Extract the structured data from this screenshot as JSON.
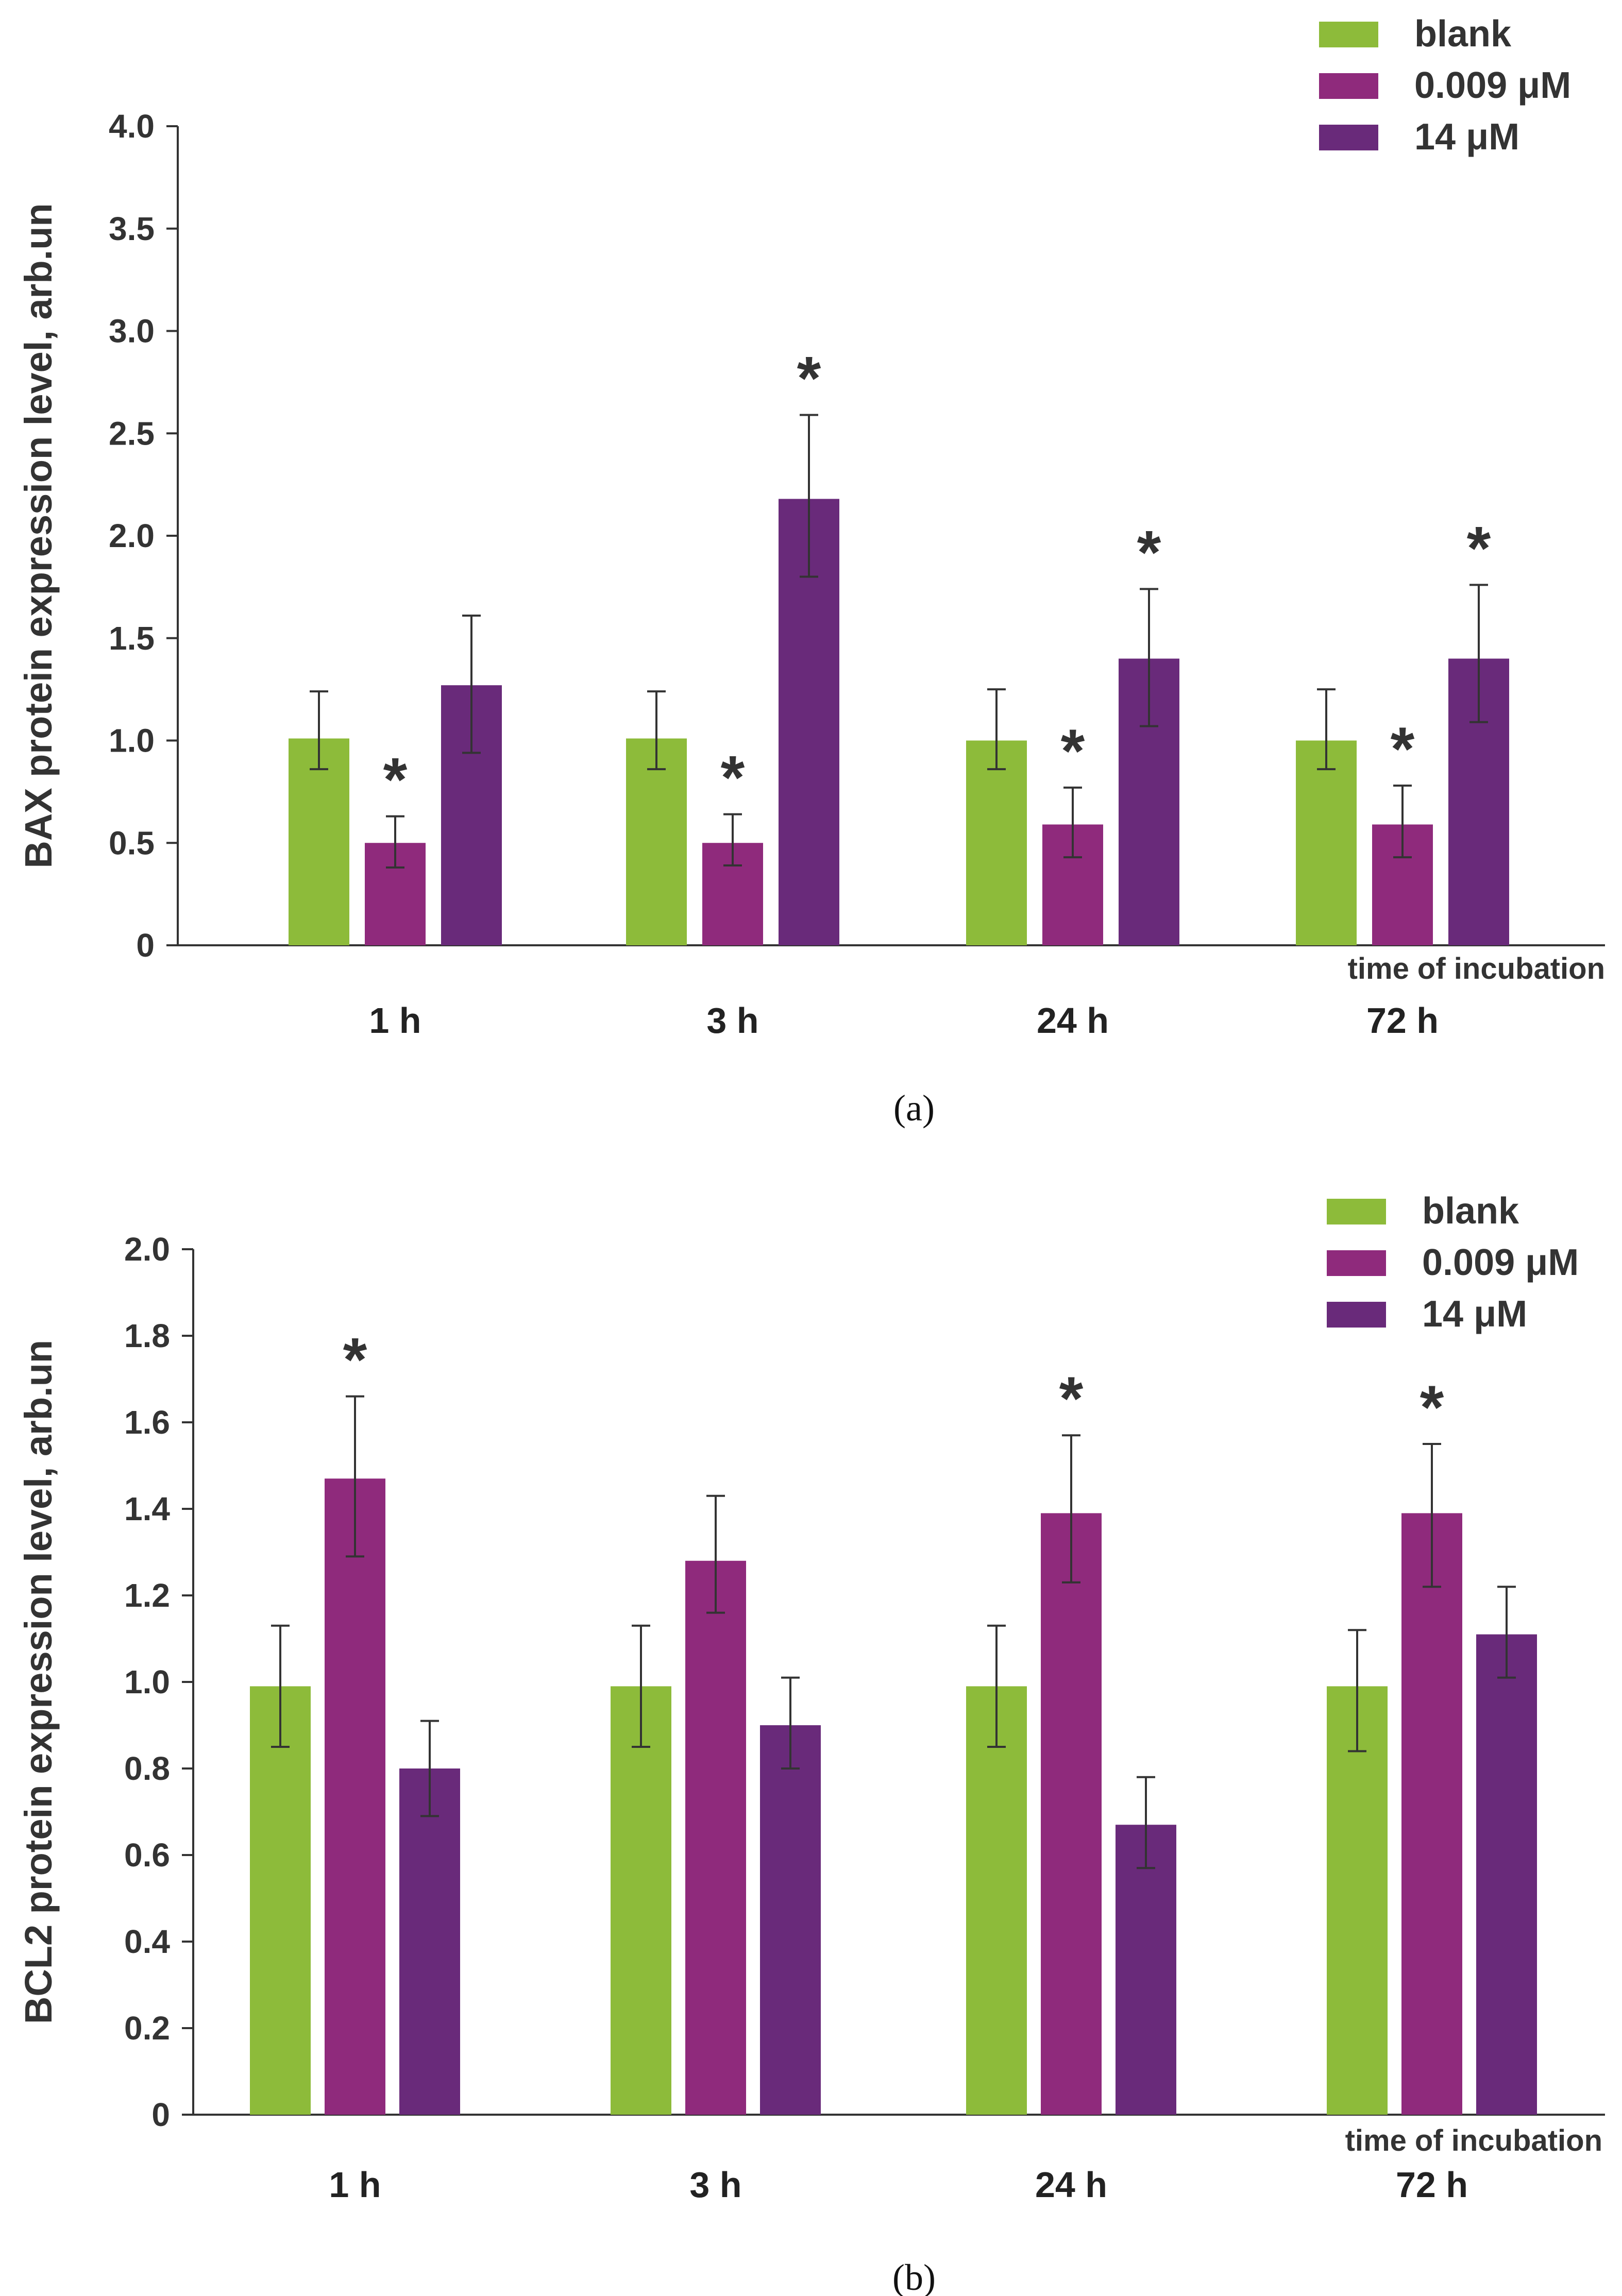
{
  "chart_data": [
    {
      "type": "bar",
      "panel": "(a)",
      "ylabel": "BAX protein expression level, arb.un",
      "xlabel": "time  of incubation",
      "categories": [
        "1 h",
        "3 h",
        "24 h",
        "72 h"
      ],
      "ylim": [
        0,
        4.0
      ],
      "yticks": [
        0,
        0.5,
        1.0,
        1.5,
        2.0,
        2.5,
        3.0,
        3.5,
        4.0
      ],
      "ytick_labels": [
        "0",
        "0.5",
        "1.0",
        "1.5",
        "2.0",
        "2.5",
        "3.0",
        "3.5",
        "4.0"
      ],
      "series": [
        {
          "name": "blank",
          "color": "#8dbb3a",
          "values": [
            1.01,
            1.01,
            1.0,
            1.0
          ],
          "err_low": [
            0.86,
            0.86,
            0.86,
            0.86
          ],
          "err_high": [
            1.24,
            1.24,
            1.25,
            1.25
          ],
          "significant": [
            false,
            false,
            false,
            false
          ]
        },
        {
          "name": "0.009 μM",
          "color": "#8f2a7c",
          "values": [
            0.5,
            0.5,
            0.59,
            0.59
          ],
          "err_low": [
            0.38,
            0.39,
            0.43,
            0.43
          ],
          "err_high": [
            0.63,
            0.64,
            0.77,
            0.78
          ],
          "significant": [
            true,
            true,
            true,
            true
          ]
        },
        {
          "name": "14 μM",
          "color": "#692a7a",
          "values": [
            1.27,
            2.18,
            1.4,
            1.4
          ],
          "err_low": [
            0.94,
            1.8,
            1.07,
            1.09
          ],
          "err_high": [
            1.61,
            2.59,
            1.74,
            1.76
          ],
          "significant": [
            false,
            true,
            true,
            true
          ]
        }
      ],
      "significance_marker": "*"
    },
    {
      "type": "bar",
      "panel": "(b)",
      "ylabel": "BCL2 protein expression level, arb.un",
      "xlabel": "time  of incubation",
      "categories": [
        "1 h",
        "3 h",
        "24 h",
        "72 h"
      ],
      "ylim": [
        0,
        2.0
      ],
      "yticks": [
        0,
        0.2,
        0.4,
        0.6,
        0.8,
        1.0,
        1.2,
        1.4,
        1.6,
        1.8,
        2.0
      ],
      "ytick_labels": [
        "0",
        "0.2",
        "0.4",
        "0.6",
        "0.8",
        "1.0",
        "1.2",
        "1.4",
        "1.6",
        "1.8",
        "2.0"
      ],
      "series": [
        {
          "name": "blank",
          "color": "#8dbb3a",
          "values": [
            0.99,
            0.99,
            0.99,
            0.99
          ],
          "err_low": [
            0.85,
            0.85,
            0.85,
            0.84
          ],
          "err_high": [
            1.13,
            1.13,
            1.13,
            1.12
          ],
          "significant": [
            false,
            false,
            false,
            false
          ]
        },
        {
          "name": "0.009 μM",
          "color": "#8f2a7c",
          "values": [
            1.47,
            1.28,
            1.39,
            1.39
          ],
          "err_low": [
            1.29,
            1.16,
            1.23,
            1.22
          ],
          "err_high": [
            1.66,
            1.43,
            1.57,
            1.55
          ],
          "significant": [
            true,
            false,
            true,
            true
          ]
        },
        {
          "name": "14 μM",
          "color": "#692a7a",
          "values": [
            0.8,
            0.9,
            0.67,
            1.11
          ],
          "err_low": [
            0.69,
            0.8,
            0.57,
            1.01
          ],
          "err_high": [
            0.91,
            1.01,
            0.78,
            1.22
          ],
          "significant": [
            false,
            false,
            false,
            false
          ]
        }
      ],
      "significance_marker": "*"
    }
  ]
}
